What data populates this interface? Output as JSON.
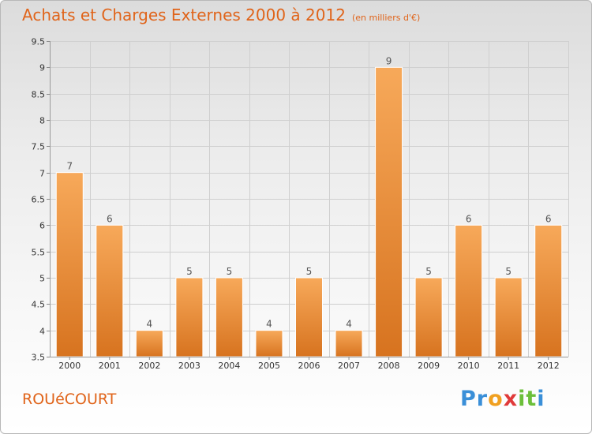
{
  "header": {
    "title": "Achats et Charges Externes 2000 à 2012",
    "subtitle": "(en milliers d'€)"
  },
  "footer": {
    "commune": "ROUéCOURT",
    "brand": "Proxiti",
    "brand_letters": [
      {
        "char": "P",
        "color": "#3a8fd8"
      },
      {
        "char": "r",
        "color": "#3a8fd8"
      },
      {
        "char": "o",
        "color": "#f0a020"
      },
      {
        "char": "x",
        "color": "#e03a3a"
      },
      {
        "char": "i",
        "color": "#6cbf3a"
      },
      {
        "char": "t",
        "color": "#6cbf3a"
      },
      {
        "char": "i",
        "color": "#3a8fd8"
      }
    ]
  },
  "colors": {
    "accent": "#e0641a",
    "bar_top": "#f7a95a",
    "bar_bottom": "#d7731f",
    "grid": "#cfcfcf",
    "axis_text": "#333333"
  },
  "chart_data": {
    "type": "bar",
    "categories": [
      "2000",
      "2001",
      "2002",
      "2003",
      "2004",
      "2005",
      "2006",
      "2007",
      "2008",
      "2009",
      "2010",
      "2011",
      "2012"
    ],
    "values": [
      7,
      6,
      4,
      5,
      5,
      4,
      5,
      4,
      9,
      5,
      6,
      5,
      6
    ],
    "data_labels": [
      "7",
      "6",
      "4",
      "5",
      "5",
      "4",
      "5",
      "4",
      "9",
      "5",
      "6",
      "5",
      "6"
    ],
    "yticks": [
      "3.5",
      "4",
      "4.5",
      "5",
      "5.5",
      "6",
      "6.5",
      "7",
      "7.5",
      "8",
      "8.5",
      "9",
      "9.5"
    ],
    "ylim": [
      3.5,
      9.5
    ],
    "xlabel": "",
    "ylabel": "",
    "grid": true,
    "legend": "none"
  }
}
